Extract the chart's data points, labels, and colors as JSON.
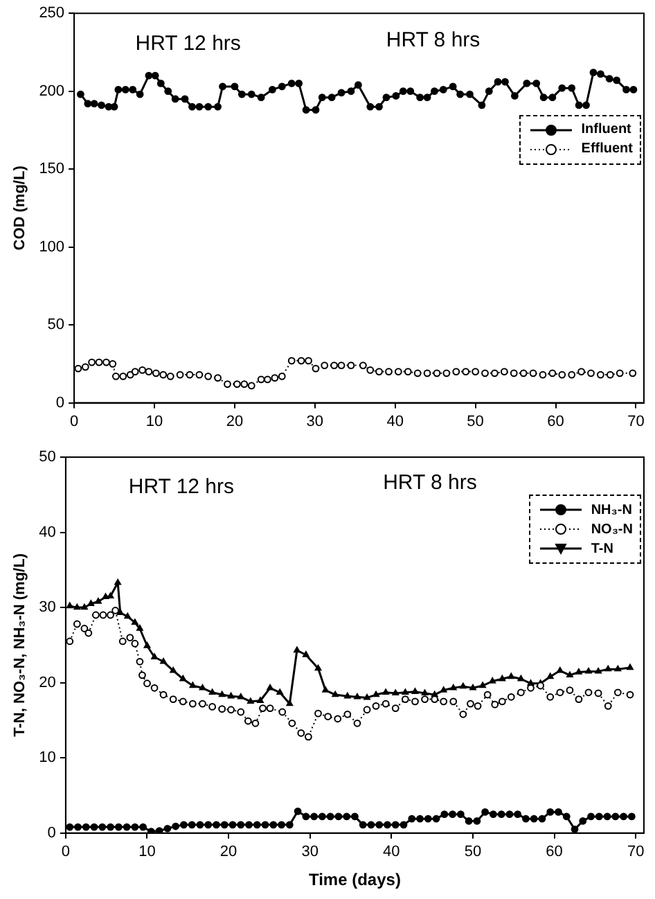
{
  "chart_data": [
    {
      "type": "line",
      "ylabel": "COD (mg/L)",
      "xlim": [
        0,
        71
      ],
      "xticks": [
        0,
        10,
        20,
        30,
        40,
        50,
        60,
        70
      ],
      "ylim": [
        0,
        250
      ],
      "yticks": [
        0,
        50,
        100,
        150,
        200,
        250
      ],
      "grid": false,
      "legend": "top right",
      "annotations": [
        "HRT 12 hrs",
        "HRT 8 hrs"
      ],
      "series": [
        {
          "name": "Influent",
          "color": "#000000",
          "marker": "circle",
          "line_style": "solid",
          "x": [
            0.8,
            1.7,
            2.5,
            3.4,
            4.3,
            5.0,
            5.5,
            6.4,
            7.3,
            8.2,
            9.3,
            10.1,
            10.8,
            11.7,
            12.6,
            13.8,
            14.7,
            15.6,
            16.7,
            17.9,
            18.5,
            20.0,
            20.9,
            22.1,
            23.3,
            24.7,
            25.9,
            27.1,
            28.0,
            28.9,
            30.1,
            30.9,
            32.1,
            33.3,
            34.5,
            35.4,
            36.9,
            38.0,
            38.9,
            40.1,
            41.0,
            41.9,
            43.1,
            44.0,
            44.9,
            46.0,
            47.2,
            48.1,
            49.3,
            50.8,
            51.7,
            52.8,
            53.7,
            54.9,
            56.4,
            57.6,
            58.5,
            59.6,
            60.8,
            62.0,
            62.9,
            63.8,
            64.7,
            65.6,
            66.7,
            67.6,
            68.8,
            69.7
          ],
          "values": [
            198,
            192,
            192,
            191,
            190,
            190,
            201,
            201,
            201,
            198,
            210,
            210,
            205,
            200,
            195,
            195,
            190,
            190,
            190,
            190,
            203,
            203,
            198,
            198,
            196,
            201,
            203,
            205,
            205,
            188,
            188,
            196,
            196,
            199,
            200,
            204,
            190,
            190,
            196,
            197,
            200,
            200,
            196,
            196,
            200,
            201,
            203,
            198,
            198,
            191,
            200,
            206,
            206,
            197,
            205,
            205,
            196,
            196,
            202,
            202,
            191,
            191,
            212,
            211,
            208,
            207,
            201,
            201
          ]
        },
        {
          "name": "Effluent",
          "color": "#000000",
          "marker": "circle",
          "line_style": "dotted",
          "x": [
            0.5,
            1.4,
            2.2,
            3.1,
            4.0,
            4.8,
            5.2,
            6.1,
            7.0,
            7.6,
            8.5,
            9.3,
            10.2,
            11.1,
            12.0,
            13.2,
            14.4,
            15.6,
            16.7,
            17.9,
            19.1,
            20.3,
            21.2,
            22.1,
            23.3,
            24.1,
            25.0,
            25.9,
            27.1,
            28.3,
            29.2,
            30.1,
            31.2,
            32.4,
            33.3,
            34.5,
            36.0,
            36.9,
            38.0,
            39.2,
            40.4,
            41.6,
            42.8,
            44.0,
            45.2,
            46.4,
            47.6,
            48.8,
            50.0,
            51.2,
            52.4,
            53.6,
            54.8,
            56.0,
            57.2,
            58.4,
            59.6,
            60.8,
            62.0,
            63.2,
            64.4,
            65.6,
            66.8,
            68.0,
            69.6
          ],
          "values": [
            22,
            23,
            26,
            26,
            26,
            25,
            17,
            17,
            18,
            20,
            21,
            20,
            19,
            18,
            17,
            18,
            18,
            18,
            17,
            16,
            12,
            12,
            12,
            11,
            15,
            15,
            16,
            17,
            27,
            27,
            27,
            22,
            24,
            24,
            24,
            24,
            24,
            21,
            20,
            20,
            20,
            20,
            19,
            19,
            19,
            19,
            20,
            20,
            20,
            19,
            19,
            20,
            19,
            19,
            19,
            18,
            19,
            18,
            18,
            20,
            19,
            18,
            18,
            19,
            19
          ]
        }
      ]
    },
    {
      "type": "line",
      "ylabel": "T-N, NO₃-N, NH₃-N (mg/L)",
      "xlabel": "Time (days)",
      "xlim": [
        0,
        71
      ],
      "xticks": [
        0,
        10,
        20,
        30,
        40,
        50,
        60,
        70
      ],
      "ylim": [
        0,
        50
      ],
      "yticks": [
        0,
        10,
        20,
        30,
        40,
        50
      ],
      "grid": false,
      "legend": "top right",
      "annotations": [
        "HRT 12 hrs",
        "HRT 8 hrs"
      ],
      "series": [
        {
          "name": "NH₃-N",
          "color": "#000000",
          "marker": "circle",
          "line_style": "solid",
          "x": [
            0.5,
            1.5,
            2.5,
            3.5,
            4.5,
            5.5,
            6.5,
            7.5,
            8.5,
            9.5,
            10.5,
            11.5,
            12.5,
            13.5,
            14.5,
            15.5,
            16.5,
            17.5,
            18.5,
            19.5,
            20.5,
            21.5,
            22.5,
            23.5,
            24.5,
            25.5,
            26.5,
            27.5,
            28.5,
            29.5,
            30.5,
            31.5,
            32.5,
            33.5,
            34.5,
            35.5,
            36.5,
            37.5,
            38.5,
            39.5,
            40.5,
            41.5,
            42.5,
            43.5,
            44.5,
            45.5,
            46.5,
            47.5,
            48.5,
            49.5,
            50.5,
            51.5,
            52.5,
            53.5,
            54.5,
            55.5,
            56.5,
            57.5,
            58.5,
            59.5,
            60.5,
            61.5,
            62.5,
            63.5,
            64.5,
            65.5,
            66.5,
            67.5,
            68.5,
            69.5
          ],
          "values": [
            0.8,
            0.8,
            0.8,
            0.8,
            0.8,
            0.8,
            0.8,
            0.8,
            0.8,
            0.8,
            0.2,
            0.3,
            0.6,
            0.9,
            1.1,
            1.1,
            1.1,
            1.1,
            1.1,
            1.1,
            1.1,
            1.1,
            1.1,
            1.1,
            1.1,
            1.1,
            1.1,
            1.1,
            2.9,
            2.2,
            2.2,
            2.2,
            2.2,
            2.2,
            2.2,
            2.2,
            1.1,
            1.1,
            1.1,
            1.1,
            1.1,
            1.1,
            1.9,
            1.9,
            1.9,
            1.9,
            2.5,
            2.5,
            2.5,
            1.6,
            1.6,
            2.8,
            2.5,
            2.5,
            2.5,
            2.5,
            1.9,
            1.9,
            1.9,
            2.8,
            2.8,
            2.2,
            0.5,
            1.6,
            2.2,
            2.2,
            2.2,
            2.2,
            2.2,
            2.2
          ]
        },
        {
          "name": "NO₃-N",
          "color": "#000000",
          "marker": "circle",
          "line_style": "dotted",
          "x": [
            0.5,
            1.4,
            2.3,
            2.8,
            3.7,
            4.6,
            5.5,
            6.1,
            7.0,
            7.9,
            8.5,
            9.1,
            9.4,
            10.0,
            10.9,
            12.0,
            13.2,
            14.4,
            15.6,
            16.8,
            18.0,
            19.2,
            20.3,
            21.5,
            22.4,
            23.3,
            24.2,
            25.1,
            26.6,
            27.8,
            28.9,
            29.8,
            31.0,
            32.2,
            33.4,
            34.6,
            35.8,
            37.0,
            38.1,
            39.3,
            40.5,
            41.7,
            42.9,
            44.1,
            45.3,
            46.4,
            47.6,
            48.8,
            49.7,
            50.6,
            51.8,
            52.7,
            53.6,
            54.7,
            55.9,
            57.1,
            58.3,
            59.5,
            60.7,
            61.9,
            63.0,
            64.2,
            65.4,
            66.6,
            67.8,
            69.3
          ],
          "values": [
            25.5,
            27.8,
            27.2,
            26.6,
            29,
            29,
            29,
            29.6,
            25.5,
            26,
            25.2,
            22.8,
            21,
            19.9,
            19.3,
            18.4,
            17.8,
            17.5,
            17.2,
            17.2,
            16.8,
            16.5,
            16.4,
            16.1,
            14.9,
            14.6,
            16.6,
            16.6,
            16.1,
            14.6,
            13.3,
            12.8,
            15.9,
            15.5,
            15.2,
            15.8,
            14.6,
            16.4,
            16.9,
            17.2,
            16.6,
            17.8,
            17.5,
            17.8,
            17.8,
            17.5,
            17.5,
            15.8,
            17.2,
            16.9,
            18.4,
            17.1,
            17.5,
            18.1,
            18.7,
            19.3,
            19.6,
            18.1,
            18.7,
            19,
            17.8,
            18.7,
            18.6,
            16.9,
            18.7,
            18.4
          ]
        },
        {
          "name": "T-N",
          "color": "#000000",
          "marker": "triangle",
          "line_style": "solid",
          "x": [
            0.5,
            1.4,
            2.3,
            3.1,
            4.0,
            4.9,
            5.5,
            6.4,
            6.7,
            7.6,
            8.5,
            9.1,
            10.0,
            10.9,
            12.0,
            13.2,
            14.4,
            15.6,
            16.8,
            18.0,
            19.2,
            20.3,
            21.5,
            22.7,
            23.9,
            25.1,
            26.3,
            27.5,
            28.4,
            29.5,
            31.0,
            31.9,
            33.1,
            34.6,
            35.8,
            37.0,
            38.1,
            39.3,
            40.5,
            41.7,
            42.9,
            44.1,
            45.3,
            46.4,
            47.6,
            48.8,
            50.0,
            51.2,
            52.4,
            53.6,
            54.7,
            55.9,
            57.1,
            58.3,
            59.5,
            60.7,
            61.9,
            63.0,
            64.2,
            65.4,
            66.6,
            67.8,
            69.3
          ],
          "values": [
            30.2,
            30,
            30,
            30.5,
            30.8,
            31.4,
            31.5,
            33.3,
            29.3,
            28.8,
            28,
            27.2,
            24.9,
            23.4,
            22.8,
            21.6,
            20.5,
            19.6,
            19.3,
            18.7,
            18.4,
            18.2,
            18.1,
            17.5,
            17.6,
            19.3,
            18.7,
            17.2,
            24.3,
            23.7,
            21.9,
            19,
            18.4,
            18.2,
            18.1,
            18,
            18.4,
            18.7,
            18.6,
            18.7,
            18.8,
            18.6,
            18.4,
            19,
            19.3,
            19.5,
            19.3,
            19.6,
            20.2,
            20.5,
            20.8,
            20.5,
            19.9,
            19.9,
            20.8,
            21.6,
            21,
            21.4,
            21.5,
            21.5,
            21.8,
            21.8,
            22
          ]
        }
      ]
    }
  ]
}
